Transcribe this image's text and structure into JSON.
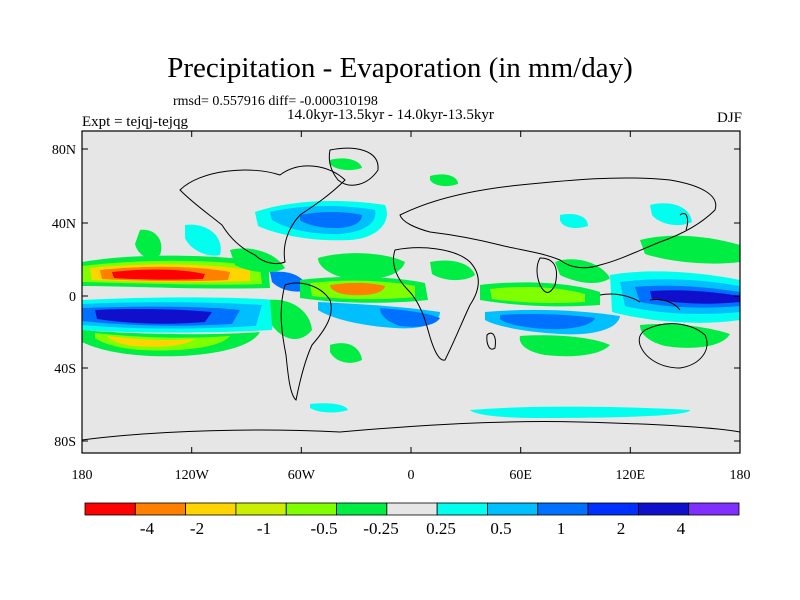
{
  "title": "Precipitation - Evaporation (in mm/day)",
  "stats": "rmsd= 0.557916 diff= -0.000310198",
  "experiment": "Expt = tejqj-tejqg",
  "period": "14.0kyr-13.5kyr - 14.0kyr-13.5kyr",
  "season": "DJF",
  "lat_labels": [
    "80N",
    "40N",
    "0",
    "40S",
    "80S"
  ],
  "lon_labels": [
    "180",
    "120W",
    "60W",
    "0",
    "60E",
    "120E",
    "180"
  ],
  "colorbar": {
    "labels": [
      "-4",
      "-2",
      "-1",
      "-0.5",
      "-0.25",
      "0.25",
      "0.5",
      "1",
      "2",
      "4"
    ],
    "colors": [
      "#ff0000",
      "#ff7f00",
      "#ffd400",
      "#ccee00",
      "#7fff00",
      "#00ee44",
      "#e6e6e6",
      "#00ffee",
      "#00bfff",
      "#0070ff",
      "#0030ff",
      "#1010cc",
      "#7f30ff"
    ]
  },
  "palette": {
    "ocean_bg": "#e6e6e6",
    "coast": "#000000"
  }
}
